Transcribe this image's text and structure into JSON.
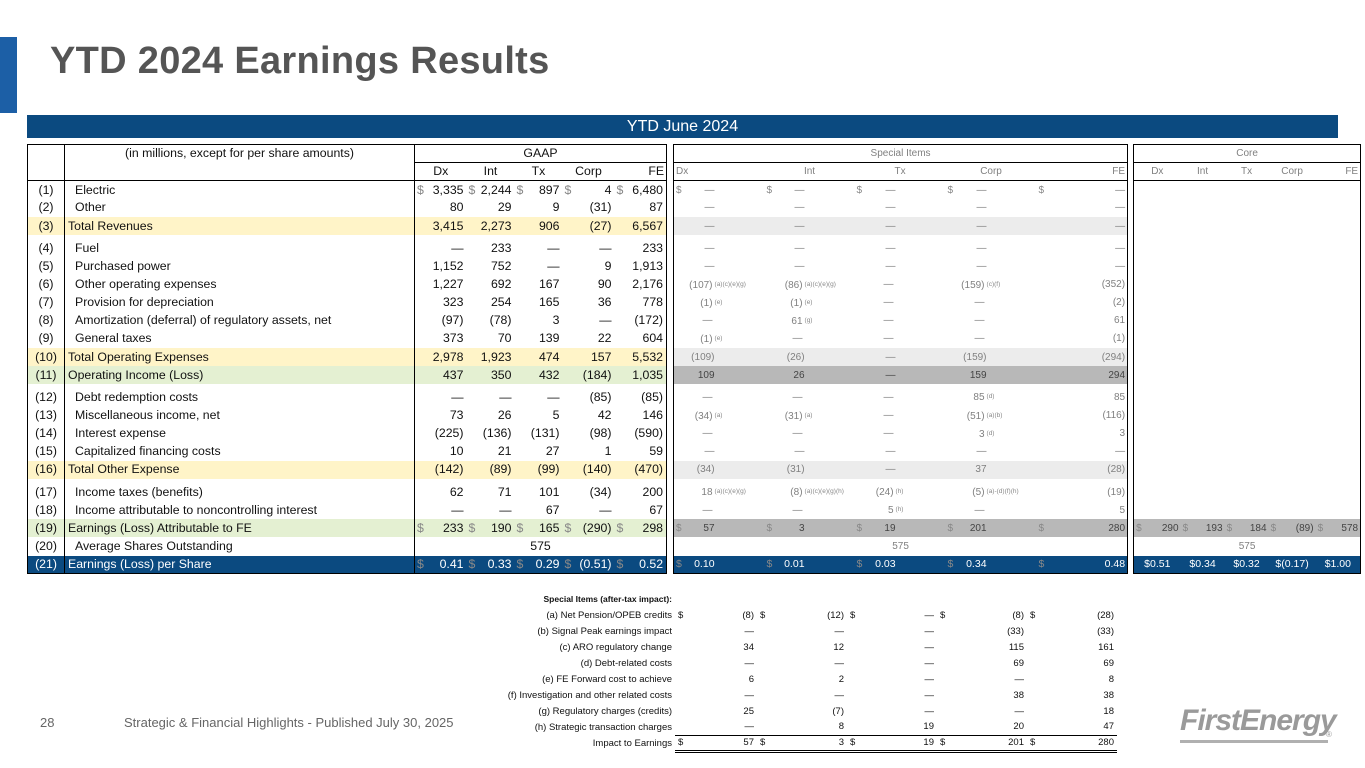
{
  "title": "YTD 2024 Earnings Results",
  "banner": "YTD June 2024",
  "headers": {
    "units": "(in millions, except for per share amounts)",
    "gaap": "GAAP",
    "special": "Special Items",
    "core": "Core",
    "cols": [
      "Dx",
      "Int",
      "Tx",
      "Corp",
      "FE"
    ]
  },
  "rows": [
    {
      "n": "(1)",
      "label": "Electric",
      "g": [
        "3,335",
        "2,244",
        "897",
        "4",
        "6,480"
      ],
      "gd": true,
      "s": [
        "—",
        "—",
        "—",
        "—",
        "—"
      ],
      "sd": true
    },
    {
      "n": "(2)",
      "label": "Other",
      "g": [
        "80",
        "29",
        "9",
        "(31)",
        "87"
      ],
      "s": [
        "—",
        "—",
        "—",
        "—",
        "—"
      ]
    },
    {
      "n": "(3)",
      "label": "Total Revenues",
      "g": [
        "3,415",
        "2,273",
        "906",
        "(27)",
        "6,567"
      ],
      "s": [
        "—",
        "—",
        "—",
        "—",
        "—"
      ],
      "style": "hl"
    },
    {
      "n": "(4)",
      "label": "Fuel",
      "g": [
        "—",
        "233",
        "—",
        "—",
        "233"
      ],
      "s": [
        "—",
        "—",
        "—",
        "—",
        "—"
      ],
      "gapBefore": true
    },
    {
      "n": "(5)",
      "label": "Purchased power",
      "g": [
        "1,152",
        "752",
        "—",
        "9",
        "1,913"
      ],
      "s": [
        "—",
        "—",
        "—",
        "—",
        "—"
      ]
    },
    {
      "n": "(6)",
      "label": "Other operating expenses",
      "g": [
        "1,227",
        "692",
        "167",
        "90",
        "2,176"
      ],
      "s": [
        "(107)",
        "(86)",
        "—",
        "(159)",
        "(352)"
      ],
      "sn": [
        "(a)(c)(e)(g)",
        "(a)(c)(e)(g)",
        "",
        "(c)(f)",
        ""
      ]
    },
    {
      "n": "(7)",
      "label": "Provision for depreciation",
      "g": [
        "323",
        "254",
        "165",
        "36",
        "778"
      ],
      "s": [
        "(1)",
        "(1)",
        "—",
        "—",
        "(2)"
      ],
      "sn": [
        "(e)",
        "(e)",
        "",
        "",
        ""
      ]
    },
    {
      "n": "(8)",
      "label": "Amortization (deferral) of regulatory assets, net",
      "g": [
        "(97)",
        "(78)",
        "3",
        "—",
        "(172)"
      ],
      "s": [
        "—",
        "61",
        "—",
        "—",
        "61"
      ],
      "sn": [
        "",
        "(g)",
        "",
        "",
        ""
      ]
    },
    {
      "n": "(9)",
      "label": "General taxes",
      "g": [
        "373",
        "70",
        "139",
        "22",
        "604"
      ],
      "s": [
        "(1)",
        "—",
        "—",
        "—",
        "(1)"
      ],
      "sn": [
        "(e)",
        "",
        "",
        "",
        ""
      ]
    },
    {
      "n": "(10)",
      "label": "Total Operating Expenses",
      "g": [
        "2,978",
        "1,923",
        "474",
        "157",
        "5,532"
      ],
      "s": [
        "(109)",
        "(26)",
        "—",
        "(159)",
        "(294)"
      ],
      "style": "hl"
    },
    {
      "n": "(11)",
      "label": "Operating Income (Loss)",
      "g": [
        "437",
        "350",
        "432",
        "(184)",
        "1,035"
      ],
      "s": [
        "109",
        "26",
        "—",
        "159",
        "294"
      ],
      "style": "hl-green-dark"
    },
    {
      "n": "(12)",
      "label": "Debt redemption costs",
      "g": [
        "—",
        "—",
        "—",
        "(85)",
        "(85)"
      ],
      "s": [
        "—",
        "—",
        "—",
        "85",
        "85"
      ],
      "sn": [
        "",
        "",
        "",
        "(d)",
        ""
      ],
      "gapBefore": true
    },
    {
      "n": "(13)",
      "label": "Miscellaneous income, net",
      "g": [
        "73",
        "26",
        "5",
        "42",
        "146"
      ],
      "s": [
        "(34)",
        "(31)",
        "—",
        "(51)",
        "(116)"
      ],
      "sn": [
        "(a)",
        "(a)",
        "",
        "(a)(b)",
        ""
      ]
    },
    {
      "n": "(14)",
      "label": "Interest expense",
      "g": [
        "(225)",
        "(136)",
        "(131)",
        "(98)",
        "(590)"
      ],
      "s": [
        "—",
        "—",
        "—",
        "3",
        "3"
      ],
      "sn": [
        "",
        "",
        "",
        "(d)",
        ""
      ]
    },
    {
      "n": "(15)",
      "label": "Capitalized financing costs",
      "g": [
        "10",
        "21",
        "27",
        "1",
        "59"
      ],
      "s": [
        "—",
        "—",
        "—",
        "—",
        "—"
      ]
    },
    {
      "n": "(16)",
      "label": "Total Other Expense",
      "g": [
        "(142)",
        "(89)",
        "(99)",
        "(140)",
        "(470)"
      ],
      "s": [
        "(34)",
        "(31)",
        "—",
        "37",
        "(28)"
      ],
      "style": "hl"
    },
    {
      "n": "(17)",
      "label": "Income taxes (benefits)",
      "g": [
        "62",
        "71",
        "101",
        "(34)",
        "200"
      ],
      "s": [
        "18",
        "(8)",
        "(24)",
        "(5)",
        "(19)"
      ],
      "sn": [
        "(a)(c)(e)(g)",
        "(a)(c)(e)(g)(h)",
        "(h)",
        "(a)-(d)(f)(h)",
        ""
      ],
      "gapBefore": true
    },
    {
      "n": "(18)",
      "label": "Income attributable to noncontrolling interest",
      "g": [
        "—",
        "—",
        "67",
        "—",
        "67"
      ],
      "s": [
        "—",
        "—",
        "5",
        "—",
        "5"
      ],
      "sn": [
        "",
        "",
        "(h)",
        "",
        ""
      ]
    },
    {
      "n": "(19)",
      "label": "Earnings (Loss) Attributable to FE",
      "g": [
        "233",
        "190",
        "165",
        "(290)",
        "298"
      ],
      "gd": true,
      "s": [
        "57",
        "3",
        "19",
        "201",
        "280"
      ],
      "sd": true,
      "c": [
        "290",
        "193",
        "184",
        "(89)",
        "578"
      ],
      "cd": true,
      "style": "hl-green-dark"
    },
    {
      "n": "(20)",
      "label": "Average Shares Outstanding",
      "gspan": "575",
      "sspan": "575",
      "cspan": "575"
    },
    {
      "n": "(21)",
      "label": "Earnings (Loss) per Share",
      "g": [
        "0.41",
        "0.33",
        "0.29",
        "(0.51)",
        "0.52"
      ],
      "gd": true,
      "s": [
        "0.10",
        "0.01",
        "0.03",
        "0.34",
        "0.48"
      ],
      "sd": true,
      "c": [
        "$0.51",
        "$0.34",
        "$0.32",
        "$(0.17)",
        "$1.00"
      ],
      "style": "final"
    }
  ],
  "dollar": "$",
  "notes": {
    "heading": "Special Items (after-tax impact):",
    "items": [
      {
        "label": "(a) Net Pension/OPEB credits",
        "v": [
          "(8)",
          "(12)",
          "—",
          "(8)",
          "(28)"
        ],
        "dol": true
      },
      {
        "label": "(b) Signal Peak earnings impact",
        "v": [
          "—",
          "—",
          "—",
          "(33)",
          "(33)"
        ]
      },
      {
        "label": "(c) ARO regulatory change",
        "v": [
          "34",
          "12",
          "—",
          "115",
          "161"
        ]
      },
      {
        "label": "(d) Debt-related costs",
        "v": [
          "—",
          "—",
          "—",
          "69",
          "69"
        ]
      },
      {
        "label": "(e) FE Forward cost to achieve",
        "v": [
          "6",
          "2",
          "—",
          "—",
          "8"
        ]
      },
      {
        "label": "(f) Investigation and other related costs",
        "v": [
          "—",
          "—",
          "—",
          "38",
          "38"
        ]
      },
      {
        "label": "(g) Regulatory charges (credits)",
        "v": [
          "25",
          "(7)",
          "—",
          "—",
          "18"
        ]
      },
      {
        "label": "(h) Strategic transaction charges",
        "v": [
          "—",
          "8",
          "19",
          "20",
          "47"
        ]
      }
    ],
    "total": {
      "label": "Impact to Earnings",
      "v": [
        "57",
        "3",
        "19",
        "201",
        "280"
      ]
    }
  },
  "footer": {
    "page": "28",
    "text": "Strategic & Financial Highlights - Published July 30, 2025"
  },
  "logo": "FirstEnergy",
  "logo_mark": "®"
}
